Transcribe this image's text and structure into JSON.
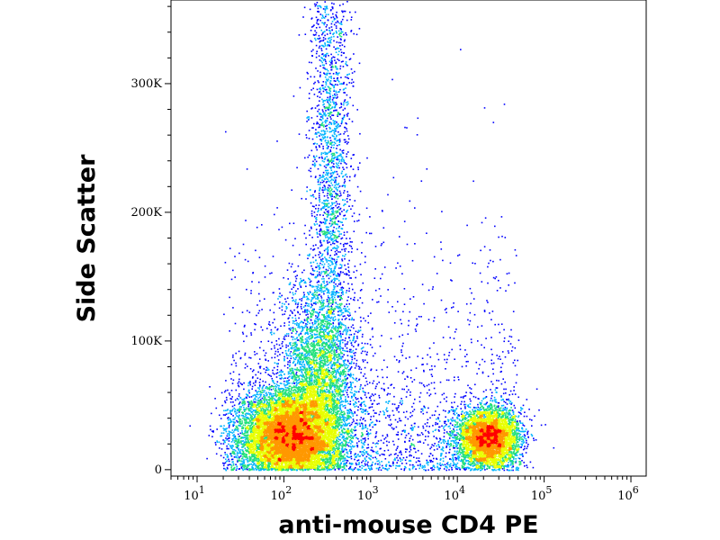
{
  "chart_data": {
    "type": "scatter",
    "subtype": "flow-cytometry-density-dot-plot",
    "xlabel": "anti-mouse CD4 PE",
    "ylabel": "Side Scatter",
    "x_scale": "log",
    "xlim": [
      5,
      1500000
    ],
    "ylim": [
      -5000,
      365000
    ],
    "x_ticks": [
      {
        "value": 10,
        "base": "10",
        "exp": "1"
      },
      {
        "value": 100,
        "base": "10",
        "exp": "2"
      },
      {
        "value": 1000,
        "base": "10",
        "exp": "3"
      },
      {
        "value": 10000,
        "base": "10",
        "exp": "4"
      },
      {
        "value": 100000,
        "base": "10",
        "exp": "5"
      },
      {
        "value": 1000000,
        "base": "10",
        "exp": "6"
      }
    ],
    "y_ticks": [
      {
        "value": 0,
        "label": "0"
      },
      {
        "value": 100000,
        "label": "100K"
      },
      {
        "value": 200000,
        "label": "200K"
      },
      {
        "value": 300000,
        "label": "300K"
      }
    ],
    "grid": false,
    "color_scale": [
      "#0000ff",
      "#00b4ff",
      "#22e07a",
      "#e8ff00",
      "#ff9800",
      "#ff0000"
    ],
    "populations": [
      {
        "x_center": 110,
        "y_center": 26000,
        "x_spread_log10": 0.28,
        "y_spread": 18000,
        "density": "high"
      },
      {
        "x_center": 250,
        "y_center": 60000,
        "x_spread_log10": 0.22,
        "y_spread": 45000,
        "density": "medium"
      },
      {
        "x_center": 340,
        "y_center": 250000,
        "x_spread_log10": 0.12,
        "y_spread": 100000,
        "density": "low"
      },
      {
        "x_center": 22000,
        "y_center": 25000,
        "x_spread_log10": 0.18,
        "y_spread": 12000,
        "density": "medium"
      }
    ]
  }
}
